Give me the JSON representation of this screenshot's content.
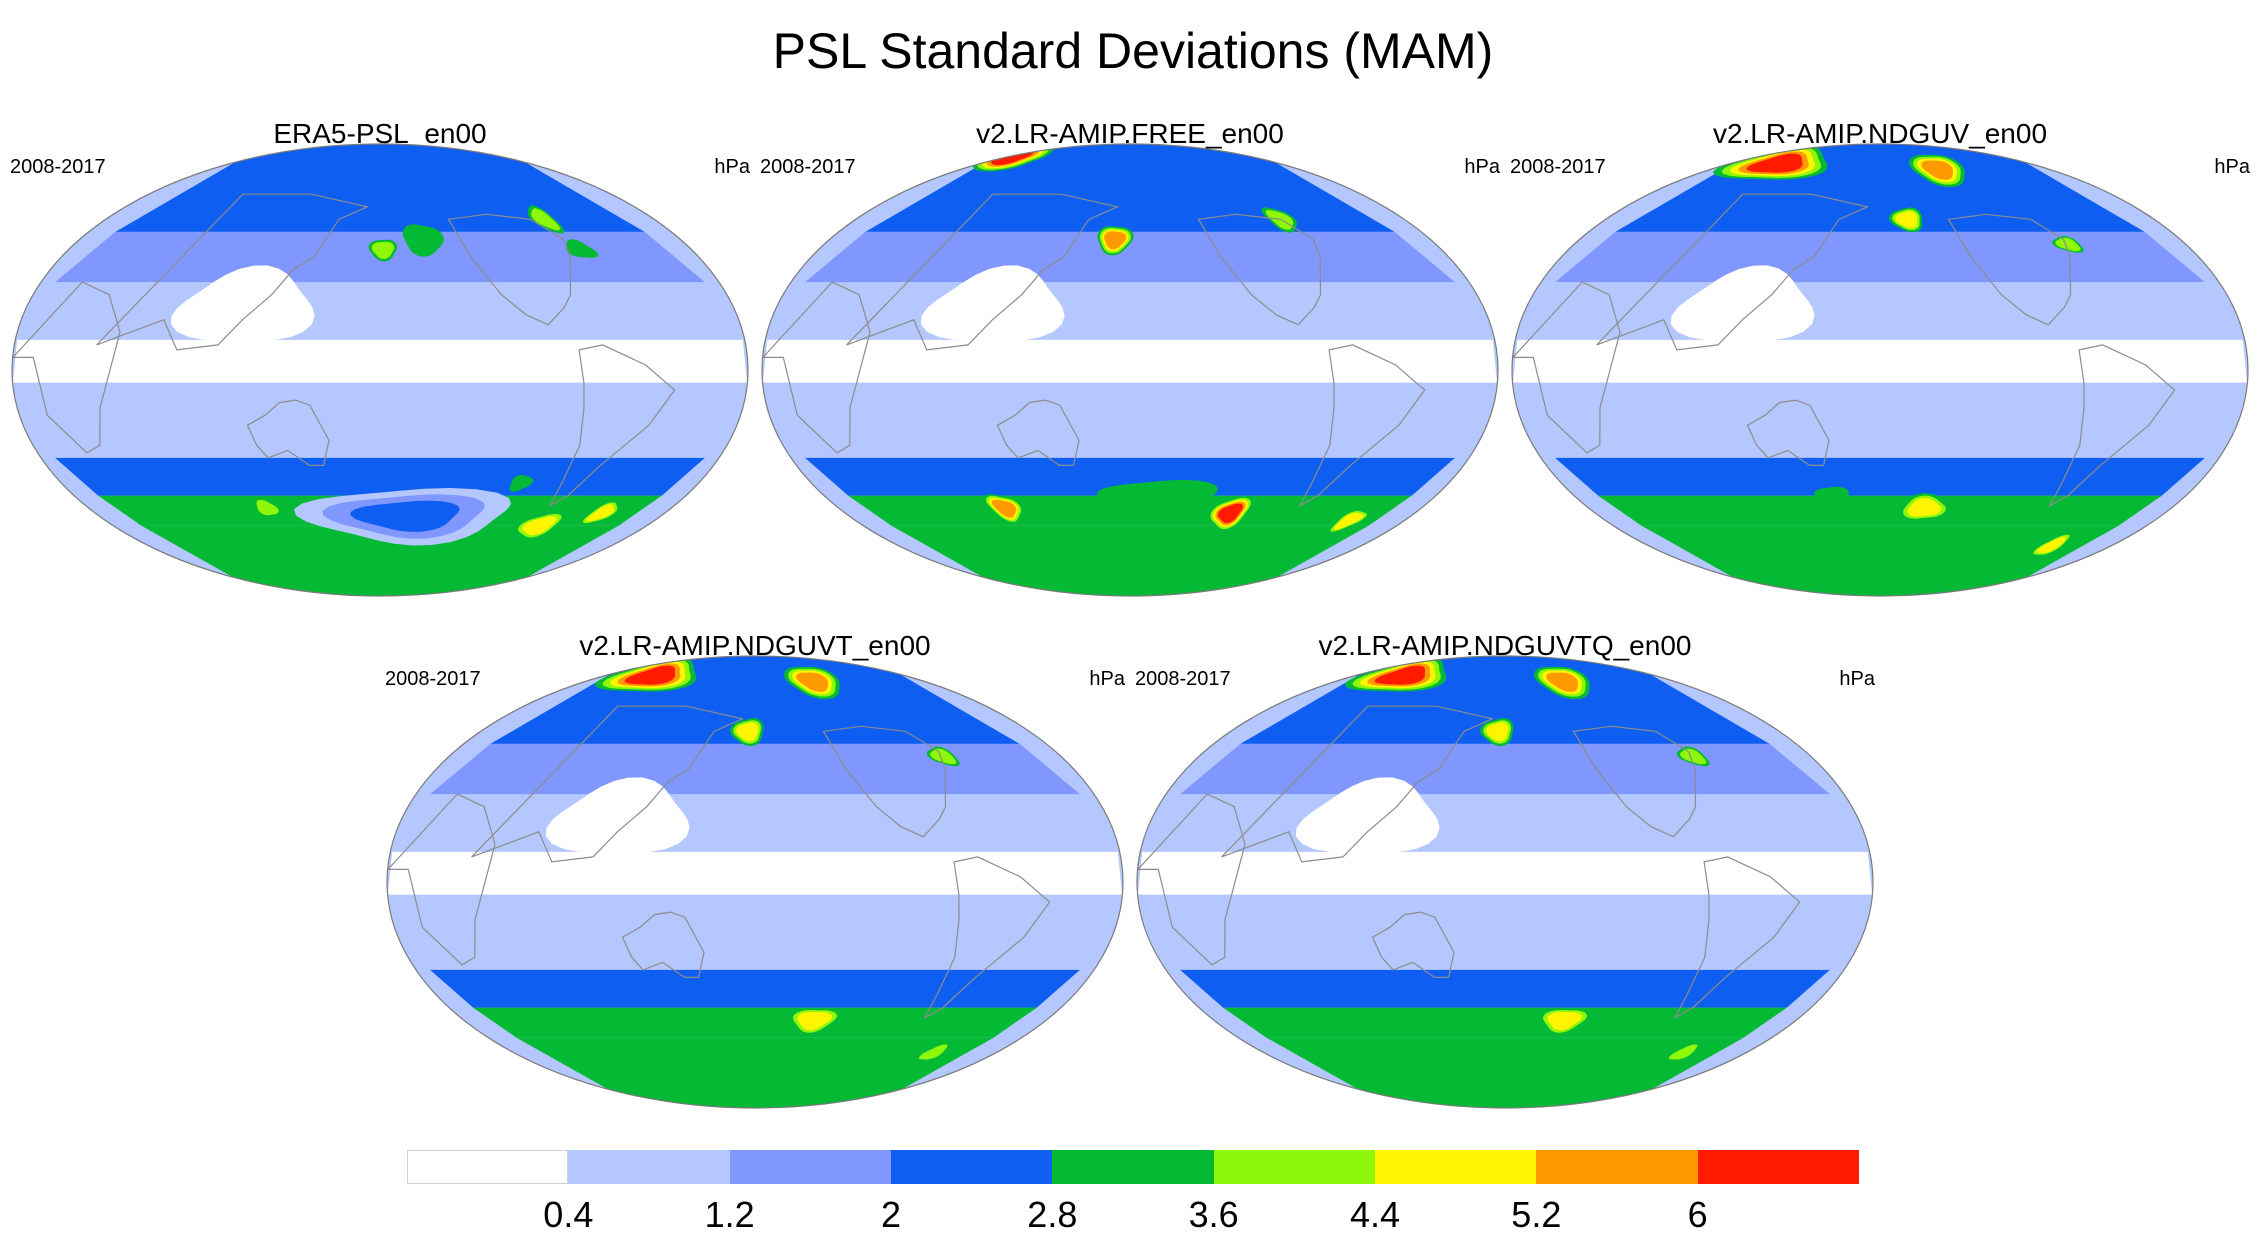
{
  "title": "PSL Standard Deviations (MAM)",
  "colors": {
    "levels": [
      "#ffffff",
      "#b4c8ff",
      "#8097ff",
      "#0f5ef2",
      "#04b934",
      "#8ff70a",
      "#fff500",
      "#ff9900",
      "#ff1a00"
    ],
    "coastline": "#8c8c8c",
    "map_border": "#7a7a7a"
  },
  "panels": [
    {
      "title": "ERA5-PSL_en00",
      "left_label": "2008-2017",
      "right_label": "hPa"
    },
    {
      "title": "v2.LR-AMIP.FREE_en00",
      "left_label": "2008-2017",
      "right_label": "hPa"
    },
    {
      "title": "v2.LR-AMIP.NDGUV_en00",
      "left_label": "2008-2017",
      "right_label": "hPa"
    },
    {
      "title": "v2.LR-AMIP.NDGUVT_en00",
      "left_label": "2008-2017",
      "right_label": "hPa"
    },
    {
      "title": "v2.LR-AMIP.NDGUVTQ_en00",
      "left_label": "2008-2017",
      "right_label": "hPa"
    }
  ],
  "chart_data": {
    "type": "heatmap",
    "title": "PSL Standard Deviations (MAM)",
    "units": "hPa",
    "period": "2008-2017",
    "colorbar": {
      "levels": [
        0.4,
        1.2,
        2,
        2.8,
        3.6,
        4.4,
        5.2,
        6
      ],
      "labels": [
        "0.4",
        "1.2",
        "2",
        "2.8",
        "3.6",
        "4.4",
        "5.2",
        "6"
      ]
    },
    "fields": [
      {
        "name": "ERA5-PSL_en00",
        "features": [
          {
            "lon": 182,
            "lat": 48,
            "value": 3.6,
            "rlon": 12,
            "rlat": 6
          },
          {
            "lon": 208,
            "lat": 52,
            "value": 2.8,
            "rlon": 25,
            "rlat": 12
          },
          {
            "lon": 300,
            "lat": 60,
            "value": 3.6,
            "rlon": 12,
            "rlat": 8
          },
          {
            "lon": 305,
            "lat": 48,
            "value": 2.8,
            "rlon": 15,
            "rlat": 6
          },
          {
            "lon": 103,
            "lat": -55,
            "value": 3.6,
            "rlon": 12,
            "rlat": 5
          },
          {
            "lon": 300,
            "lat": -62,
            "value": 4.4,
            "rlon": 22,
            "rlat": 7
          },
          {
            "lon": 335,
            "lat": -57,
            "value": 4.4,
            "rlon": 12,
            "rlat": 6
          },
          {
            "lon": 265,
            "lat": -45,
            "value": 2.8,
            "rlon": 10,
            "rlat": 5
          },
          {
            "lon": 200,
            "lat": -58,
            "value": 2.0,
            "rlon": 70,
            "rlat": 10
          }
        ]
      },
      {
        "name": "v2.LR-AMIP.FREE_en00",
        "features": [
          {
            "lon": 25,
            "lat": 85,
            "value": 6.0,
            "rlon": 60,
            "rlat": 6
          },
          {
            "lon": 170,
            "lat": 52,
            "value": 5.2,
            "rlon": 14,
            "rlat": 7
          },
          {
            "lon": 290,
            "lat": 60,
            "value": 3.6,
            "rlon": 14,
            "rlat": 7
          },
          {
            "lon": 95,
            "lat": -55,
            "value": 5.2,
            "rlon": 14,
            "rlat": 7
          },
          {
            "lon": 250,
            "lat": -57,
            "value": 6.0,
            "rlon": 16,
            "rlat": 8
          },
          {
            "lon": 340,
            "lat": -60,
            "value": 4.4,
            "rlon": 12,
            "rlat": 6
          },
          {
            "lon": 200,
            "lat": -50,
            "value": 2.8,
            "rlon": 80,
            "rlat": 12
          }
        ]
      },
      {
        "name": "v2.LR-AMIP.NDGUV_en00",
        "features": [
          {
            "lon": 60,
            "lat": 82,
            "value": 6.0,
            "rlon": 80,
            "rlat": 8
          },
          {
            "lon": 245,
            "lat": 80,
            "value": 5.2,
            "rlon": 40,
            "rlat": 8
          },
          {
            "lon": 200,
            "lat": 60,
            "value": 4.4,
            "rlon": 16,
            "rlat": 6
          },
          {
            "lon": 300,
            "lat": 50,
            "value": 3.6,
            "rlon": 12,
            "rlat": 4
          },
          {
            "lon": 210,
            "lat": -55,
            "value": 4.4,
            "rlon": 24,
            "rlat": 7
          },
          {
            "lon": 330,
            "lat": -70,
            "value": 4.4,
            "rlon": 14,
            "rlat": 6
          },
          {
            "lon": 150,
            "lat": -50,
            "value": 2.8,
            "rlon": 20,
            "rlat": 6
          }
        ]
      },
      {
        "name": "v2.LR-AMIP.NDGUVT_en00",
        "features": [
          {
            "lon": 60,
            "lat": 82,
            "value": 6.0,
            "rlon": 70,
            "rlat": 8
          },
          {
            "lon": 245,
            "lat": 80,
            "value": 5.2,
            "rlon": 40,
            "rlat": 8
          },
          {
            "lon": 175,
            "lat": 60,
            "value": 4.4,
            "rlon": 16,
            "rlat": 7
          },
          {
            "lon": 300,
            "lat": 50,
            "value": 3.6,
            "rlon": 12,
            "rlat": 5
          },
          {
            "lon": 220,
            "lat": -55,
            "value": 4.4,
            "rlon": 24,
            "rlat": 7
          },
          {
            "lon": 330,
            "lat": -68,
            "value": 3.6,
            "rlon": 14,
            "rlat": 5
          }
        ]
      },
      {
        "name": "v2.LR-AMIP.NDGUVTQ_en00",
        "features": [
          {
            "lon": 60,
            "lat": 82,
            "value": 6.0,
            "rlon": 70,
            "rlat": 8
          },
          {
            "lon": 245,
            "lat": 80,
            "value": 5.2,
            "rlon": 40,
            "rlat": 8
          },
          {
            "lon": 175,
            "lat": 60,
            "value": 4.4,
            "rlon": 16,
            "rlat": 7
          },
          {
            "lon": 300,
            "lat": 50,
            "value": 3.6,
            "rlon": 12,
            "rlat": 5
          },
          {
            "lon": 220,
            "lat": -55,
            "value": 4.4,
            "rlon": 24,
            "rlat": 7
          },
          {
            "lon": 330,
            "lat": -68,
            "value": 3.6,
            "rlon": 14,
            "rlat": 5
          }
        ]
      }
    ]
  }
}
